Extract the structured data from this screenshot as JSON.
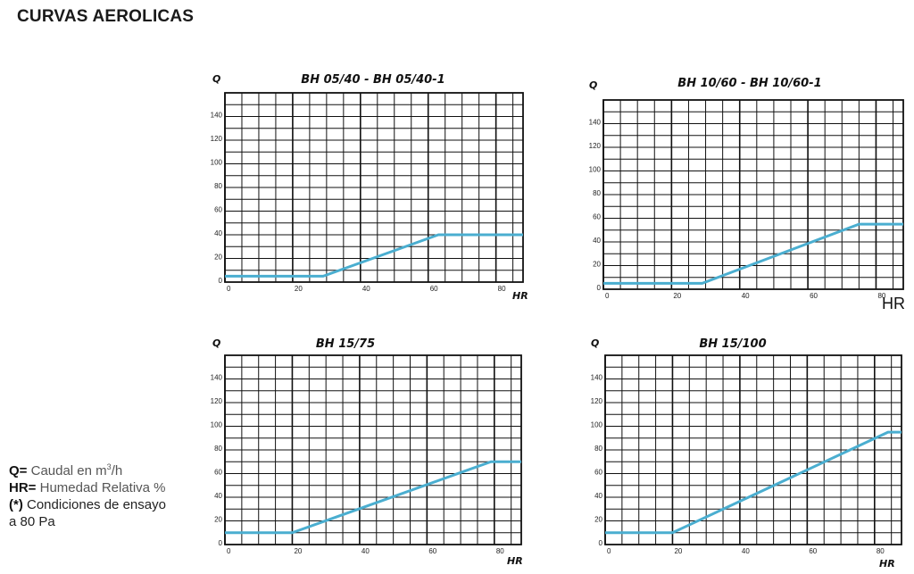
{
  "page_title": "CURVAS AEROLICAS",
  "legend": {
    "q_key": "Q=",
    "q_text": "Caudal en m",
    "q_sup": "3",
    "q_unit": "/h",
    "hr_key": "HR=",
    "hr_text": "Humedad Relativa %",
    "note_key": "(*)",
    "note_text": "Condiciones de ensayo",
    "note_text2": "a 80 Pa"
  },
  "colors": {
    "curve": "#4aaed0",
    "grid": "#111111"
  },
  "chart_data": [
    {
      "type": "line",
      "title": "BH 05/40 - BH 05/40-1",
      "ylabel": "Q",
      "xlabel": "HR",
      "xlim": [
        0,
        88
      ],
      "ylim": [
        0,
        160
      ],
      "xticks": [
        0,
        20,
        40,
        60,
        80
      ],
      "yticks": [
        0,
        20,
        40,
        60,
        80,
        100,
        120,
        140
      ],
      "grid": true,
      "x": [
        0,
        29,
        63,
        88
      ],
      "y": [
        5,
        5,
        40,
        40
      ]
    },
    {
      "type": "line",
      "title": "BH 10/60 - BH 10/60-1",
      "ylabel": "Q",
      "xlabel": "HR",
      "xlim": [
        0,
        88
      ],
      "ylim": [
        0,
        160
      ],
      "xticks": [
        0,
        20,
        40,
        60,
        80
      ],
      "yticks": [
        0,
        20,
        40,
        60,
        80,
        100,
        120,
        140
      ],
      "grid": true,
      "x": [
        0,
        29,
        75,
        88
      ],
      "y": [
        5,
        5,
        55,
        55
      ]
    },
    {
      "type": "line",
      "title": "BH 15/75",
      "ylabel": "Q",
      "xlabel": "HR",
      "xlim": [
        0,
        88
      ],
      "ylim": [
        0,
        160
      ],
      "xticks": [
        0,
        20,
        40,
        60,
        80
      ],
      "yticks": [
        0,
        20,
        40,
        60,
        80,
        100,
        120,
        140
      ],
      "grid": true,
      "x": [
        0,
        20,
        79,
        88
      ],
      "y": [
        10,
        10,
        70,
        70
      ]
    },
    {
      "type": "line",
      "title": "BH 15/100",
      "ylabel": "Q",
      "xlabel": "HR",
      "xlim": [
        0,
        88
      ],
      "ylim": [
        0,
        160
      ],
      "xticks": [
        0,
        20,
        40,
        60,
        80
      ],
      "yticks": [
        0,
        20,
        40,
        60,
        80,
        100,
        120,
        140
      ],
      "grid": true,
      "x": [
        0,
        20,
        84,
        88
      ],
      "y": [
        10,
        10,
        95,
        95
      ]
    }
  ]
}
